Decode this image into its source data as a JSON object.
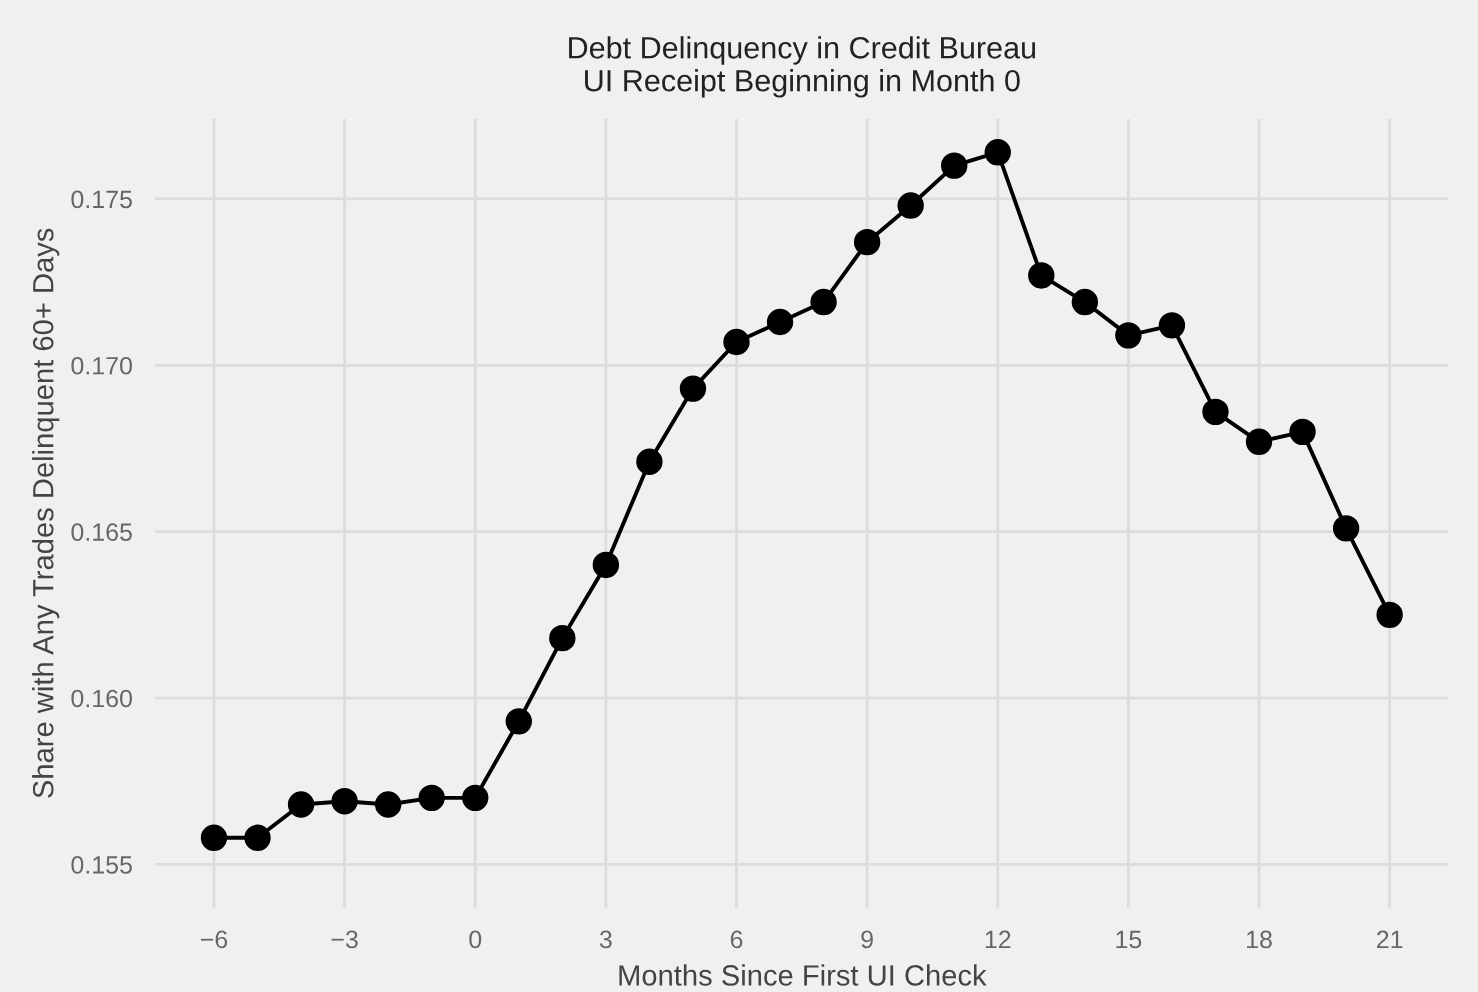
{
  "chart_data": {
    "type": "line",
    "title": "Debt Delinquency in Credit Bureau\nUI Receipt Beginning in Month 0",
    "xlabel": "Months Since First UI Check",
    "ylabel": "Share with Any Trades Delinquent 60+ Days",
    "x": [
      -6,
      -5,
      -4,
      -3,
      -2,
      -1,
      0,
      1,
      2,
      3,
      4,
      5,
      6,
      7,
      8,
      9,
      10,
      11,
      12,
      13,
      14,
      15,
      16,
      17,
      18,
      19,
      20,
      21
    ],
    "series": [
      {
        "color": "#000000",
        "values": [
          0.1558,
          0.1558,
          0.1568,
          0.1569,
          0.1568,
          0.157,
          0.157,
          0.1593,
          0.1618,
          0.164,
          0.1671,
          0.1693,
          0.1707,
          0.1713,
          0.1719,
          0.1737,
          0.1748,
          0.176,
          0.1764,
          0.1727,
          0.1719,
          0.1709,
          0.1712,
          0.1686,
          0.1677,
          0.168,
          0.1651,
          0.1625
        ]
      }
    ],
    "xlim": [
      -7.35,
      22.35
    ],
    "xticks": [
      {
        "value": -6,
        "label": "−6"
      },
      {
        "value": -3,
        "label": "−3"
      },
      0,
      3,
      6,
      9,
      12,
      15,
      18,
      21
    ],
    "ylim": [
      0.1537,
      0.1774
    ],
    "yticks": [
      {
        "value": 0.155,
        "label": "0.155"
      },
      {
        "value": 0.16,
        "label": "0.160"
      },
      {
        "value": 0.165,
        "label": "0.165"
      },
      {
        "value": 0.17,
        "label": "0.170"
      },
      {
        "value": 0.175,
        "label": "0.175"
      }
    ],
    "grid": true,
    "marker": "circle",
    "line_style": "solid"
  }
}
